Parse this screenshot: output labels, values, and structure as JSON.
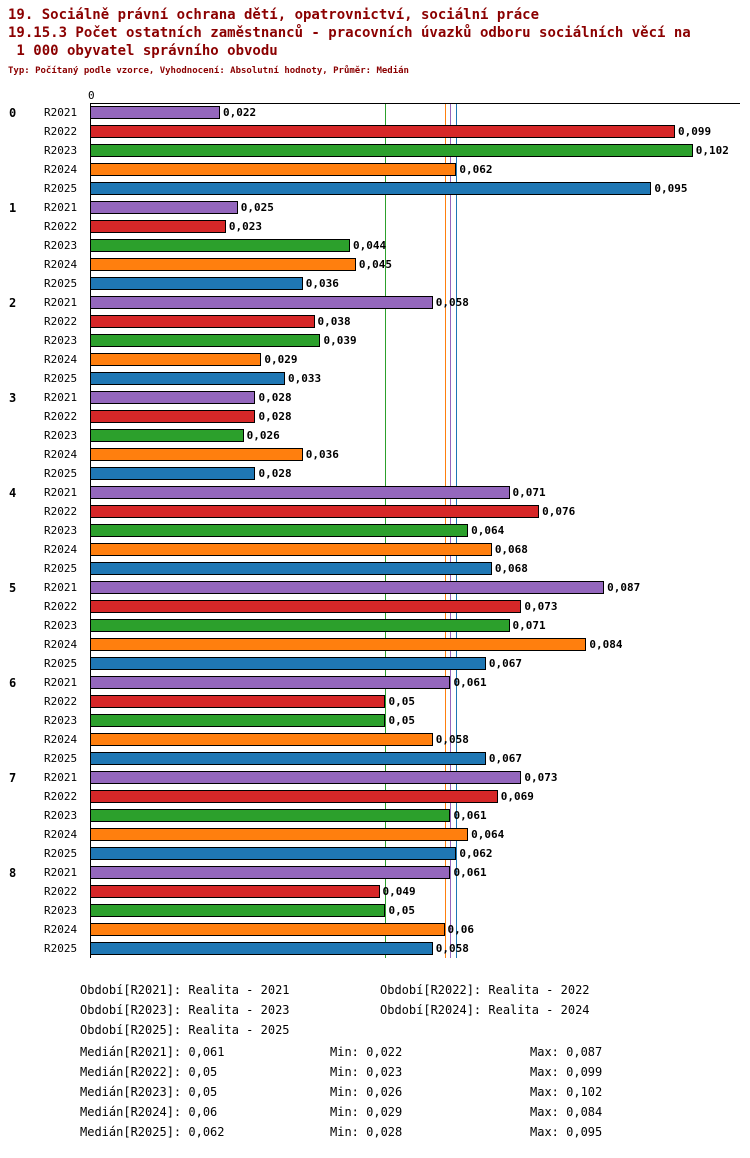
{
  "header": {
    "line1": "19. Sociálně právní ochrana dětí, opatrovnictví, sociální práce",
    "line2": "19.15.3 Počet ostatních zaměstnanců - pracovních úvazků odboru sociálních věcí na",
    "line3": " 1 000 obyvatel správního obvodu",
    "subtitle": "Typ: Počítaný podle vzorce, Vyhodnocení: Absolutní hodnoty, Průměr: Medián"
  },
  "chart_data": {
    "type": "bar",
    "orientation": "horizontal",
    "title": "19.15.3 Počet ostatních zaměstnanců - pracovních úvazků odboru sociálních věcí na 1 000 obyvatel správního obvodu",
    "x_axis": {
      "zero_label": "0",
      "xmax": 0.11,
      "decimal_separator": ","
    },
    "categories": [
      "0",
      "1",
      "2",
      "3",
      "4",
      "5",
      "6",
      "7",
      "8"
    ],
    "series": [
      {
        "name": "R2021",
        "color": "#9467bd",
        "median": "0,061",
        "values": [
          "0,022",
          "0,025",
          "0,058",
          "0,028",
          "0,071",
          "0,087",
          "0,061",
          "0,073",
          "0,061"
        ]
      },
      {
        "name": "R2022",
        "color": "#d62728",
        "median": "0,05",
        "values": [
          "0,099",
          "0,023",
          "0,038",
          "0,028",
          "0,076",
          "0,073",
          "0,05",
          "0,069",
          "0,049"
        ]
      },
      {
        "name": "R2023",
        "color": "#2ca02c",
        "median": "0,05",
        "values": [
          "0,102",
          "0,044",
          "0,039",
          "0,026",
          "0,064",
          "0,071",
          "0,05",
          "0,061",
          "0,05"
        ]
      },
      {
        "name": "R2024",
        "color": "#ff7f0e",
        "median": "0,06",
        "values": [
          "0,062",
          "0,045",
          "0,029",
          "0,036",
          "0,068",
          "0,084",
          "0,058",
          "0,064",
          "0,06"
        ]
      },
      {
        "name": "R2025",
        "color": "#1f77b4",
        "median": "0,062",
        "values": [
          "0,095",
          "0,036",
          "0,033",
          "0,028",
          "0,068",
          "0,067",
          "0,067",
          "0,062",
          "0,058"
        ]
      }
    ],
    "legend_position": "bottom",
    "grid": false
  },
  "legend": {
    "items": [
      {
        "label": "Období[R2021]: Realita - 2021"
      },
      {
        "label": "Období[R2022]: Realita - 2022"
      },
      {
        "label": "Období[R2023]: Realita - 2023"
      },
      {
        "label": "Období[R2024]: Realita - 2024"
      },
      {
        "label": "Období[R2025]: Realita - 2025"
      }
    ]
  },
  "stats": {
    "rows": [
      {
        "median": "Medián[R2021]: 0,061",
        "min": "Min: 0,022",
        "max": "Max: 0,087"
      },
      {
        "median": "Medián[R2022]: 0,05",
        "min": "Min: 0,023",
        "max": "Max: 0,099"
      },
      {
        "median": "Medián[R2023]: 0,05",
        "min": "Min: 0,026",
        "max": "Max: 0,102"
      },
      {
        "median": "Medián[R2024]: 0,06",
        "min": "Min: 0,029",
        "max": "Max: 0,084"
      },
      {
        "median": "Medián[R2025]: 0,062",
        "min": "Min: 0,028",
        "max": "Max: 0,095"
      }
    ]
  }
}
